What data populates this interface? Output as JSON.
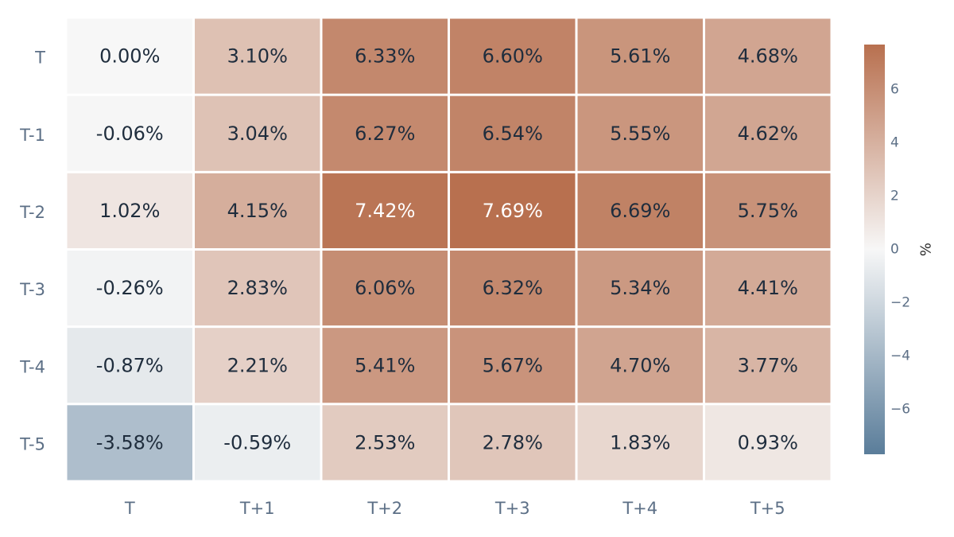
{
  "chart_data": {
    "type": "heatmap",
    "x_categories": [
      "T",
      "T+1",
      "T+2",
      "T+3",
      "T+4",
      "T+5"
    ],
    "y_categories": [
      "T",
      "T-1",
      "T-2",
      "T-3",
      "T-4",
      "T-5"
    ],
    "values": [
      [
        0.0,
        3.1,
        6.33,
        6.6,
        5.61,
        4.68
      ],
      [
        -0.06,
        3.04,
        6.27,
        6.54,
        5.55,
        4.62
      ],
      [
        1.02,
        4.15,
        7.42,
        7.69,
        6.69,
        5.75
      ],
      [
        -0.26,
        2.83,
        6.06,
        6.32,
        5.34,
        4.41
      ],
      [
        -0.87,
        2.21,
        5.41,
        5.67,
        4.7,
        3.77
      ],
      [
        -3.58,
        -0.59,
        2.53,
        2.78,
        1.83,
        0.93
      ]
    ],
    "cell_labels": [
      [
        "0.00%",
        "3.10%",
        "6.33%",
        "6.60%",
        "5.61%",
        "4.68%"
      ],
      [
        "-0.06%",
        "3.04%",
        "6.27%",
        "6.54%",
        "5.55%",
        "4.62%"
      ],
      [
        "1.02%",
        "4.15%",
        "7.42%",
        "7.69%",
        "6.69%",
        "5.75%"
      ],
      [
        "-0.26%",
        "2.83%",
        "6.06%",
        "6.32%",
        "5.34%",
        "4.41%"
      ],
      [
        "-0.87%",
        "2.21%",
        "5.41%",
        "5.67%",
        "4.70%",
        "3.77%"
      ],
      [
        "-3.58%",
        "-0.59%",
        "2.53%",
        "2.78%",
        "1.83%",
        "0.93%"
      ]
    ],
    "colorbar": {
      "title": "%",
      "range": [
        -7.69,
        7.69
      ],
      "ticks": [
        6,
        4,
        2,
        0,
        -2,
        -4,
        -6
      ],
      "tick_labels": [
        "6",
        "4",
        "2",
        "0",
        "−2",
        "−4",
        "−6"
      ]
    },
    "colorscale": {
      "negative": "#5a7d9a",
      "neutral": "#f7f7f7",
      "positive": "#b8704f"
    },
    "grid": false,
    "legend": "colorbar-right"
  }
}
